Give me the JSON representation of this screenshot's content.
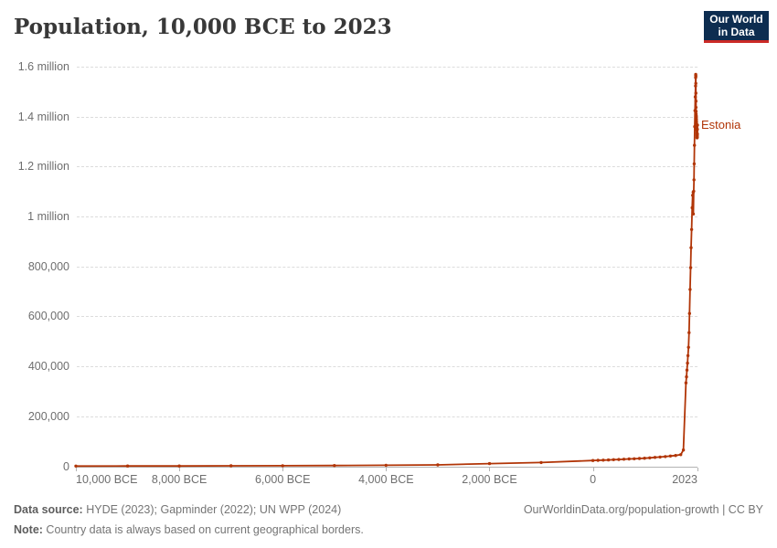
{
  "header": {
    "title": "Population, 10,000 BCE to 2023",
    "logo": {
      "line1": "Our World",
      "line2": "in Data",
      "bg_color": "#0d2d50",
      "accent_color": "#cb2a27"
    }
  },
  "chart_data": {
    "type": "line",
    "title": "Population, 10,000 BCE to 2023",
    "xlabel": "",
    "ylabel": "",
    "xlim": [
      -10000,
      2023
    ],
    "ylim": [
      0,
      1600000
    ],
    "grid": "horizontal-dashed",
    "legend": "end-of-line-label",
    "y_ticks": [
      {
        "value": 0,
        "label": "0"
      },
      {
        "value": 200000,
        "label": "200,000"
      },
      {
        "value": 400000,
        "label": "400,000"
      },
      {
        "value": 600000,
        "label": "600,000"
      },
      {
        "value": 800000,
        "label": "800,000"
      },
      {
        "value": 1000000,
        "label": "1 million"
      },
      {
        "value": 1200000,
        "label": "1.2 million"
      },
      {
        "value": 1400000,
        "label": "1.4 million"
      },
      {
        "value": 1600000,
        "label": "1.6 million"
      }
    ],
    "x_ticks": [
      {
        "year": -10000,
        "label": "10,000 BCE",
        "align": "left"
      },
      {
        "year": -8000,
        "label": "8,000 BCE",
        "align": "center"
      },
      {
        "year": -6000,
        "label": "6,000 BCE",
        "align": "center"
      },
      {
        "year": -4000,
        "label": "4,000 BCE",
        "align": "center"
      },
      {
        "year": -2000,
        "label": "2,000 BCE",
        "align": "center"
      },
      {
        "year": 0,
        "label": "0",
        "align": "center"
      },
      {
        "year": 2023,
        "label": "2023",
        "align": "right"
      }
    ],
    "series": [
      {
        "name": "Estonia",
        "color": "#b13507",
        "points": [
          [
            -10000,
            700
          ],
          [
            -9000,
            950
          ],
          [
            -8000,
            1250
          ],
          [
            -7000,
            1700
          ],
          [
            -6000,
            2300
          ],
          [
            -5000,
            3000
          ],
          [
            -4000,
            3900
          ],
          [
            -3000,
            5600
          ],
          [
            -2000,
            10500
          ],
          [
            -1000,
            15000
          ],
          [
            0,
            23000
          ],
          [
            100,
            23800
          ],
          [
            200,
            24600
          ],
          [
            300,
            25400
          ],
          [
            400,
            26300
          ],
          [
            500,
            27200
          ],
          [
            600,
            28100
          ],
          [
            700,
            29100
          ],
          [
            800,
            30100
          ],
          [
            900,
            31200
          ],
          [
            1000,
            32300
          ],
          [
            1100,
            33800
          ],
          [
            1200,
            35400
          ],
          [
            1300,
            37100
          ],
          [
            1400,
            38900
          ],
          [
            1500,
            40900
          ],
          [
            1600,
            43300
          ],
          [
            1700,
            46500
          ],
          [
            1750,
            65000
          ],
          [
            1800,
            334000
          ],
          [
            1810,
            358000
          ],
          [
            1820,
            385000
          ],
          [
            1830,
            413000
          ],
          [
            1840,
            443000
          ],
          [
            1850,
            476000
          ],
          [
            1860,
            535000
          ],
          [
            1870,
            612000
          ],
          [
            1880,
            708000
          ],
          [
            1890,
            795000
          ],
          [
            1900,
            875000
          ],
          [
            1910,
            948000
          ],
          [
            1920,
            1035000
          ],
          [
            1930,
            1085000
          ],
          [
            1940,
            1097000
          ],
          [
            1944,
            1010000
          ],
          [
            1950,
            1101000
          ],
          [
            1955,
            1147000
          ],
          [
            1960,
            1211000
          ],
          [
            1965,
            1285000
          ],
          [
            1970,
            1360000
          ],
          [
            1975,
            1424000
          ],
          [
            1980,
            1479000
          ],
          [
            1985,
            1523000
          ],
          [
            1988,
            1556000
          ],
          [
            1989,
            1565000
          ],
          [
            1990,
            1569000
          ],
          [
            1991,
            1561000
          ],
          [
            1992,
            1533000
          ],
          [
            1993,
            1494000
          ],
          [
            1994,
            1462000
          ],
          [
            1995,
            1437000
          ],
          [
            1996,
            1421000
          ],
          [
            1997,
            1411000
          ],
          [
            1998,
            1404000
          ],
          [
            1999,
            1400000
          ],
          [
            2000,
            1397000
          ],
          [
            2001,
            1390000
          ],
          [
            2002,
            1384000
          ],
          [
            2003,
            1378000
          ],
          [
            2004,
            1372000
          ],
          [
            2005,
            1366000
          ],
          [
            2006,
            1361000
          ],
          [
            2007,
            1357000
          ],
          [
            2008,
            1353000
          ],
          [
            2009,
            1348000
          ],
          [
            2010,
            1343000
          ],
          [
            2011,
            1334000
          ],
          [
            2012,
            1327000
          ],
          [
            2013,
            1322000
          ],
          [
            2014,
            1317000
          ],
          [
            2015,
            1315000
          ],
          [
            2016,
            1316000
          ],
          [
            2017,
            1317000
          ],
          [
            2018,
            1321000
          ],
          [
            2019,
            1326000
          ],
          [
            2020,
            1329000
          ],
          [
            2021,
            1331000
          ],
          [
            2022,
            1349000
          ],
          [
            2023,
            1366000
          ]
        ]
      }
    ]
  },
  "footer": {
    "source_label": "Data source:",
    "source_text": " HYDE (2023); Gapminder (2022); UN WPP (2024)",
    "note_label": "Note:",
    "note_text": " Country data is always based on current geographical borders.",
    "right_text": "OurWorldinData.org/population-growth | CC BY"
  },
  "colors": {
    "line": "#b13507",
    "grid": "#dcdcdc",
    "axis": "#b3b3b3",
    "tick_text": "#6e6e6e",
    "title_text": "#383838"
  }
}
